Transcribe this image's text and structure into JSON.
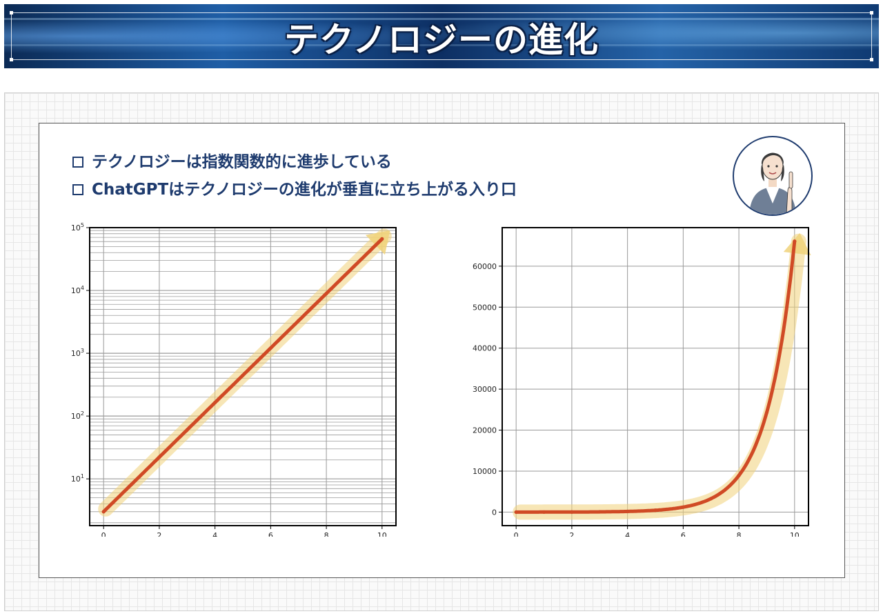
{
  "header": {
    "title": "テクノロジーの進化"
  },
  "bullets": [
    "テクノロジーは指数関数的に進歩している",
    "ChatGPTはテクノロジーの進化が垂直に立ち上がる入り口"
  ],
  "icons": {
    "bullet": "checkbox-icon",
    "person": "presenter-illustration"
  },
  "colors": {
    "line": "#d04a25",
    "arrow": "#f0d27a",
    "text": "#1e3b6e"
  },
  "chart_data": [
    {
      "type": "line",
      "function": "y = 3 * exp(x)",
      "x": [
        0,
        1,
        2,
        3,
        4,
        5,
        6,
        7,
        8,
        9,
        10
      ],
      "y": [
        3,
        8.15,
        22.17,
        60.26,
        163.8,
        445.2,
        1210.3,
        3289.9,
        8943.0,
        24309.3,
        66079.4
      ],
      "yscale": "log",
      "xlim": [
        -0.5,
        10.5
      ],
      "ylim": [
        1.8,
        100000
      ],
      "x_ticks": [
        0,
        2,
        4,
        6,
        8,
        10
      ],
      "x_tick_labels": [
        "0",
        "2",
        "4",
        "6",
        "8",
        "10"
      ],
      "y_ticks": [
        10,
        100,
        1000,
        10000,
        100000
      ],
      "y_tick_labels": [
        "10",
        "10",
        "10",
        "10",
        "10"
      ],
      "y_tick_exponents": [
        "1",
        "2",
        "3",
        "4",
        "5"
      ],
      "grid": true,
      "arrow_overlay": true
    },
    {
      "type": "line",
      "function": "y = 3 * exp(x)",
      "x": [
        0,
        1,
        2,
        3,
        4,
        5,
        6,
        7,
        8,
        9,
        10
      ],
      "y": [
        3,
        8.15,
        22.17,
        60.26,
        163.8,
        445.2,
        1210.3,
        3289.9,
        8943.0,
        24309.3,
        66079.4
      ],
      "yscale": "linear",
      "xlim": [
        -0.5,
        10.5
      ],
      "ylim": [
        -3300,
        69400
      ],
      "x_ticks": [
        0,
        2,
        4,
        6,
        8,
        10
      ],
      "x_tick_labels": [
        "0",
        "2",
        "4",
        "6",
        "8",
        "10"
      ],
      "y_ticks": [
        0,
        10000,
        20000,
        30000,
        40000,
        50000,
        60000
      ],
      "y_tick_labels": [
        "0",
        "10000",
        "20000",
        "30000",
        "40000",
        "50000",
        "60000"
      ],
      "grid": true,
      "arrow_overlay": true
    }
  ]
}
